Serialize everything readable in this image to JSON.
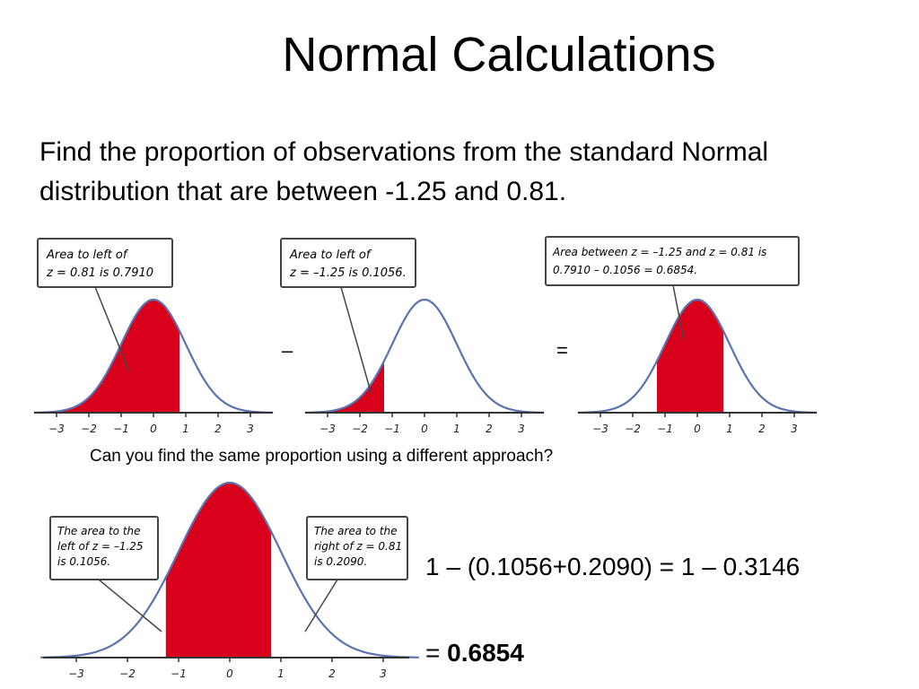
{
  "slide": {
    "title": "Normal Calculations",
    "problem_line1": "Find the proportion of observations from the standard Normal",
    "problem_line2": "distribution that are between -1.25 and 0.81.",
    "question": "Can you find the same proportion using a different approach?",
    "equation1": "1 – (0.1056+0.2090) = 1 – 0.3146",
    "equation2_prefix": "= ",
    "equation2_result": "0.6854"
  },
  "panels": [
    {
      "callout_line1": "Area to left of",
      "callout_line2": "z = 0.81 is 0.7910",
      "shaded_from": -3.5,
      "shaded_to": 0.81
    },
    {
      "callout_line1": "Area to left of",
      "callout_line2": "z = –1.25 is 0.1056.",
      "shaded_from": -3.5,
      "shaded_to": -1.25
    },
    {
      "callout_line1": "Area between z = –1.25 and z = 0.81 is",
      "callout_line2": "0.7910 – 0.1056 = 0.6854.",
      "shaded_from": -1.25,
      "shaded_to": 0.81
    }
  ],
  "operators": {
    "minus": "–",
    "equals": "="
  },
  "bottom_panel": {
    "left_callout_line1": "The area to the",
    "left_callout_line2": "left of z = –1.25",
    "left_callout_line3": "is 0.1056.",
    "right_callout_line1": "The area to the",
    "right_callout_line2": "right of z = 0.81",
    "right_callout_line3": "is 0.2090.",
    "shaded_from": -1.25,
    "shaded_to": 0.81
  },
  "axis_ticks": [
    "−3",
    "−2",
    "−1",
    "0",
    "1",
    "2",
    "3"
  ],
  "colors": {
    "fill": "#d9001b",
    "curve": "#5b72b0",
    "axis": "#333333",
    "callout_border": "#444444"
  }
}
